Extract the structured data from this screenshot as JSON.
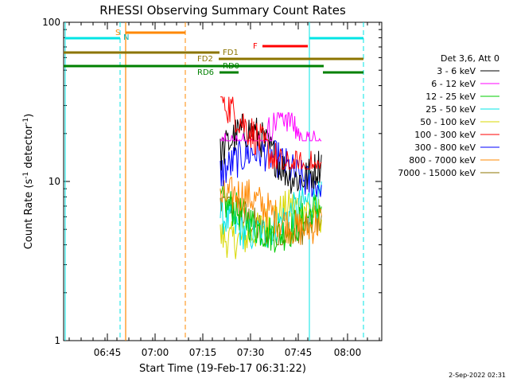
{
  "chart_data": {
    "type": "line",
    "title": "RHESSI Observing Summary Count Rates",
    "xlabel": "Start Time (19-Feb-17 06:31:22)",
    "ylabel": "Count Rate (s⁻¹ detector⁻¹)",
    "ylabel_main": "Count Rate (s",
    "ylabel_sup1": "-1",
    "ylabel_mid": " detector",
    "ylabel_sup2": "-1",
    "ylabel_end": ")",
    "yscale": "log",
    "ylim": [
      1,
      100
    ],
    "yticks": [
      1,
      10,
      100
    ],
    "ytick_labels": [
      "1",
      "10",
      "100"
    ],
    "xlim": [
      "06:31",
      "08:11"
    ],
    "xticks": [
      "06:45",
      "07:00",
      "07:15",
      "07:30",
      "07:45",
      "08:00"
    ],
    "timestamp": "2-Sep-2022 02:31",
    "legend": {
      "placement": "right",
      "header": "Det 3,6, Att 0",
      "entries": [
        {
          "label": "3 - 6 keV",
          "color": "#000000"
        },
        {
          "label": "6 - 12 keV",
          "color": "#ff00ff"
        },
        {
          "label": "12 - 25 keV",
          "color": "#00cc00"
        },
        {
          "label": "25 - 50 keV",
          "color": "#00e5e5"
        },
        {
          "label": "50 - 100 keV",
          "color": "#d8d800"
        },
        {
          "label": "100 - 300 keV",
          "color": "#ff0000"
        },
        {
          "label": "300 - 800 keV",
          "color": "#0000ff"
        },
        {
          "label": "800 - 7000 keV",
          "color": "#ff8800"
        },
        {
          "label": "7000 - 15000 keV",
          "color": "#8c7400"
        }
      ]
    },
    "flag_labels": {
      "S": "S",
      "N": "N",
      "F": "F",
      "FD1": "FD1",
      "FD2": "FD2",
      "RD0": "RD0",
      "RD6": "RD6"
    },
    "series": [
      {
        "name": "3 - 6 keV",
        "color": "#000000",
        "range_approx": [
          8,
          27
        ]
      },
      {
        "name": "6 - 12 keV",
        "color": "#ff00ff",
        "range_approx": [
          18,
          27
        ]
      },
      {
        "name": "12 - 25 keV",
        "color": "#00cc00",
        "range_approx": [
          3,
          12
        ]
      },
      {
        "name": "25 - 50 keV",
        "color": "#00e5e5",
        "range_approx": [
          3,
          12
        ]
      },
      {
        "name": "50 - 100 keV",
        "color": "#d8d800",
        "range_approx": [
          3,
          10
        ]
      },
      {
        "name": "100 - 300 keV",
        "color": "#ff0000",
        "range_approx": [
          12,
          34
        ]
      },
      {
        "name": "300 - 800 keV",
        "color": "#0000ff",
        "range_approx": [
          8,
          18
        ]
      },
      {
        "name": "800 - 7000 keV",
        "color": "#ff8800",
        "range_approx": [
          3.5,
          12
        ]
      },
      {
        "name": "7000 - 15000 keV",
        "color": "#8c7400",
        "range_approx": [
          4,
          8
        ]
      }
    ]
  }
}
